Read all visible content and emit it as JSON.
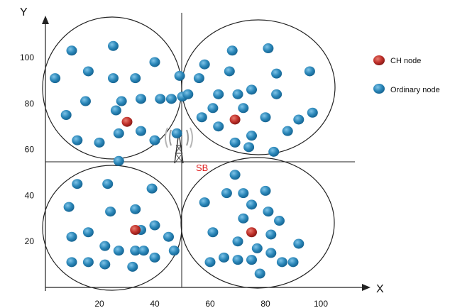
{
  "axes": {
    "x_name": "X",
    "y_name": "Y",
    "x_ticks": [
      "20",
      "40",
      "60",
      "80",
      "100"
    ],
    "y_ticks": [
      "20",
      "40",
      "60",
      "80",
      "100"
    ]
  },
  "sink": {
    "label": "SB"
  },
  "legend": [
    {
      "label": "CH node",
      "color": "#c0302a"
    },
    {
      "label": "Ordinary node",
      "color": "#2a86b8"
    }
  ],
  "colors": {
    "ch": "#c0302a",
    "ordinary": "#2a86b8",
    "line": "#222222"
  },
  "chart_data": {
    "type": "scatter",
    "xlim": [
      0,
      105
    ],
    "ylim": [
      0,
      110
    ],
    "sink_position": [
      50,
      53
    ],
    "clusters": [
      {
        "ch": [
          30,
          72
        ],
        "ordinary": [
          [
            10,
            103
          ],
          [
            25,
            105
          ],
          [
            4,
            91
          ],
          [
            16,
            94
          ],
          [
            25,
            91
          ],
          [
            33,
            91
          ],
          [
            40,
            98
          ],
          [
            49,
            92
          ],
          [
            15,
            81
          ],
          [
            28,
            81
          ],
          [
            35,
            82
          ],
          [
            42,
            82
          ],
          [
            46,
            82
          ],
          [
            50,
            83
          ],
          [
            8,
            75
          ],
          [
            26,
            77
          ],
          [
            12,
            64
          ],
          [
            20,
            63
          ],
          [
            27,
            67
          ],
          [
            35,
            68
          ],
          [
            40,
            64
          ],
          [
            48,
            67
          ],
          [
            27,
            55
          ]
        ]
      },
      {
        "ch": [
          69,
          73
        ],
        "ordinary": [
          [
            68,
            103
          ],
          [
            81,
            104
          ],
          [
            58,
            97
          ],
          [
            56,
            91
          ],
          [
            67,
            94
          ],
          [
            84,
            93
          ],
          [
            96,
            94
          ],
          [
            52,
            84
          ],
          [
            63,
            84
          ],
          [
            70,
            84
          ],
          [
            75,
            86
          ],
          [
            84,
            84
          ],
          [
            61,
            78
          ],
          [
            72,
            78
          ],
          [
            57,
            74
          ],
          [
            63,
            70
          ],
          [
            75,
            66
          ],
          [
            80,
            74
          ],
          [
            88,
            68
          ],
          [
            92,
            73
          ],
          [
            97,
            76
          ],
          [
            69,
            63
          ],
          [
            74,
            61
          ],
          [
            83,
            59
          ]
        ]
      },
      {
        "ch": [
          33,
          25
        ],
        "ordinary": [
          [
            12,
            45
          ],
          [
            23,
            45
          ],
          [
            39,
            43
          ],
          [
            9,
            35
          ],
          [
            24,
            33
          ],
          [
            33,
            34
          ],
          [
            10,
            22
          ],
          [
            16,
            24
          ],
          [
            35,
            25
          ],
          [
            40,
            27
          ],
          [
            45,
            22
          ],
          [
            22,
            18
          ],
          [
            27,
            16
          ],
          [
            33,
            16
          ],
          [
            36,
            16
          ],
          [
            40,
            13
          ],
          [
            47,
            16
          ],
          [
            10,
            11
          ],
          [
            16,
            11
          ],
          [
            22,
            10
          ],
          [
            32,
            9
          ]
        ]
      },
      {
        "ch": [
          75,
          24
        ],
        "ordinary": [
          [
            69,
            49
          ],
          [
            58,
            37
          ],
          [
            66,
            41
          ],
          [
            72,
            41
          ],
          [
            80,
            42
          ],
          [
            75,
            36
          ],
          [
            72,
            30
          ],
          [
            81,
            33
          ],
          [
            85,
            29
          ],
          [
            61,
            24
          ],
          [
            82,
            23
          ],
          [
            70,
            20
          ],
          [
            77,
            17
          ],
          [
            92,
            19
          ],
          [
            60,
            11
          ],
          [
            65,
            13
          ],
          [
            70,
            12
          ],
          [
            75,
            12
          ],
          [
            82,
            15
          ],
          [
            86,
            11
          ],
          [
            90,
            11
          ],
          [
            78,
            6
          ]
        ]
      }
    ]
  }
}
